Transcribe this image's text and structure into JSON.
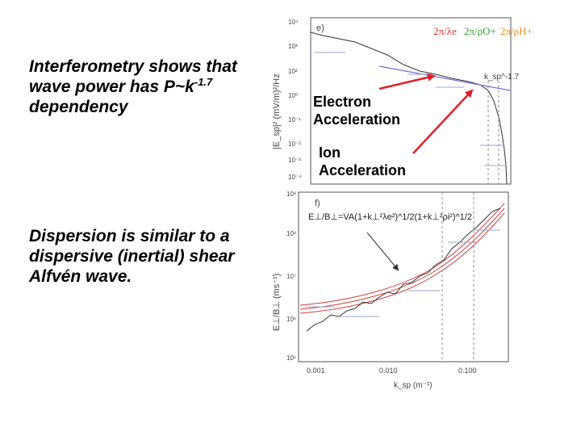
{
  "text": {
    "para_top_prefix": "Interferometry shows that wave power has P~k",
    "para_top_exponent": "-1.7",
    "para_top_suffix": " dependency",
    "para_bottom": "Dispersion is similar to a dispersive (inertial) shear Alfvén wave."
  },
  "callouts": {
    "electron": [
      "Electron",
      "Acceleration"
    ],
    "ion": [
      "Ion",
      "Acceleration"
    ]
  },
  "colors": {
    "arrow": "#e0202a",
    "fit_line": "#7070d8",
    "model_curves": "#d04040",
    "electron_scale": "#e03030",
    "ion_scale": "#30a030",
    "helium_scale": "#e09020",
    "axis": "#555555"
  },
  "panel_e": {
    "label": "e)",
    "ylabel": "|E_sp|² (mV/m)²/Hz",
    "yticks": [
      "10⁴",
      "10³",
      "10²",
      "10⁰",
      "10⁻¹",
      "10⁻²",
      "10⁻³",
      "10⁻⁴"
    ],
    "fit_label": "k_sp^-1.7",
    "legend": [
      "2π/λe",
      "2π/ρO+",
      "2π/ρH+"
    ]
  },
  "panel_f": {
    "label": "f)",
    "formula": "E⊥/B⊥=VA(1+k⊥²λe²)^1/2(1+k⊥²ρi²)^1/2",
    "ylabel": "E⊥/B⊥ (ms⁻¹)",
    "yticks": [
      "10⁹",
      "10⁸",
      "10⁷",
      "10⁶",
      "10⁵"
    ],
    "xticks": [
      "0.001",
      "0.010",
      "0.100"
    ],
    "xlabel": "k_sp (m⁻¹)"
  }
}
